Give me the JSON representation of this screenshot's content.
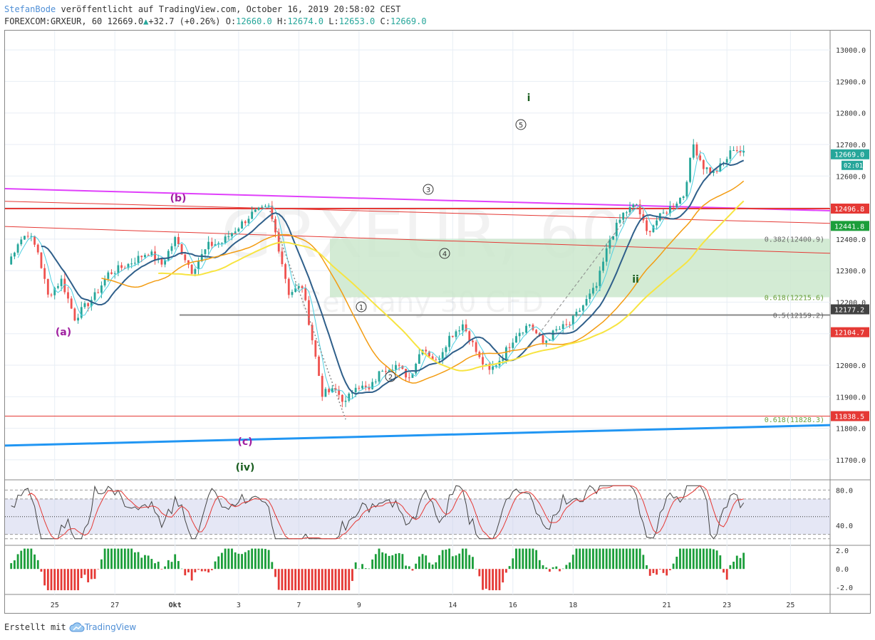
{
  "header": {
    "author": "StefanBode",
    "published": "veröffentlicht auf TradingView.com, October 16, 2019 20:58:02 CEST",
    "symbol": "FOREXCOM:GRXEUR, 60",
    "last": "12669.0",
    "change": "+32.7 (+0.26%)",
    "o_label": "O:",
    "o_value": "12660.0",
    "h_label": "H:",
    "h_value": "12674.0",
    "l_label": "L:",
    "l_value": "12653.0",
    "c_label": "C:",
    "c_value": "12669.0"
  },
  "footer": {
    "text": "Erstellt mit",
    "brand": "TradingView"
  },
  "watermark": {
    "symbol": "GRXEUR, 60",
    "name": "Germany 30 CFD"
  },
  "colors": {
    "bull": "#26a69a",
    "bear": "#ef5350",
    "magenta": "#e040fb",
    "red": "#e53935",
    "blue": "#2196f3",
    "navy": "#2f5f8a",
    "cyan": "#4dd0e1",
    "orange": "#f39c12",
    "yellow": "#f7e441",
    "zone": "#c8e6c9",
    "grid": "#e8eef5"
  },
  "chart_data": [
    {
      "type": "candlestick",
      "title": "FOREXCOM:GRXEUR, 60",
      "y_range": [
        11650,
        13050
      ],
      "y_ticks": [
        "13000.0",
        "12900.0",
        "12800.0",
        "12700.0",
        "12600.0",
        "12500.0",
        "12400.0",
        "12300.0",
        "12200.0",
        "12100.0",
        "12000.0",
        "11900.0",
        "11800.0",
        "11700.0"
      ],
      "x_ticks": [
        "25",
        "27",
        "Okt",
        "3",
        "7",
        "9",
        "14",
        "16",
        "18",
        "21",
        "23",
        "25"
      ],
      "path": [
        [
          0,
          12320
        ],
        [
          3,
          12390
        ],
        [
          6,
          12420
        ],
        [
          9,
          12360
        ],
        [
          12,
          12220
        ],
        [
          16,
          12270
        ],
        [
          20,
          12150
        ],
        [
          26,
          12220
        ],
        [
          30,
          12290
        ],
        [
          36,
          12320
        ],
        [
          42,
          12360
        ],
        [
          46,
          12320
        ],
        [
          50,
          12400
        ],
        [
          55,
          12300
        ],
        [
          60,
          12380
        ],
        [
          64,
          12390
        ],
        [
          68,
          12430
        ],
        [
          73,
          12480
        ],
        [
          78,
          12500
        ],
        [
          80,
          12420
        ],
        [
          84,
          12230
        ],
        [
          88,
          12250
        ],
        [
          90,
          12140
        ],
        [
          94,
          11910
        ],
        [
          98,
          11920
        ],
        [
          101,
          11880
        ],
        [
          104,
          11940
        ],
        [
          108,
          11920
        ],
        [
          112,
          11990
        ],
        [
          116,
          12000
        ],
        [
          120,
          11960
        ],
        [
          124,
          12060
        ],
        [
          128,
          12010
        ],
        [
          132,
          12090
        ],
        [
          136,
          12130
        ],
        [
          138,
          12090
        ],
        [
          141,
          12020
        ],
        [
          144,
          11980
        ],
        [
          148,
          12030
        ],
        [
          152,
          12100
        ],
        [
          156,
          12130
        ],
        [
          160,
          12070
        ],
        [
          164,
          12110
        ],
        [
          168,
          12130
        ],
        [
          172,
          12190
        ],
        [
          176,
          12250
        ],
        [
          180,
          12400
        ],
        [
          184,
          12480
        ],
        [
          188,
          12510
        ],
        [
          191,
          12420
        ],
        [
          194,
          12460
        ],
        [
          198,
          12500
        ],
        [
          202,
          12540
        ],
        [
          205,
          12700
        ],
        [
          208,
          12630
        ],
        [
          211,
          12610
        ],
        [
          214,
          12640
        ],
        [
          217,
          12690
        ],
        [
          220,
          12670
        ]
      ],
      "last_price": "12669.0",
      "countdown": "02:01"
    },
    {
      "type": "horizontal_levels",
      "levels": [
        {
          "label": "12496.8",
          "value": 12496.8,
          "color": "#e53935"
        },
        {
          "label": "12441.8",
          "value": 12441.8,
          "color": "#1b9e3a"
        },
        {
          "label": "12177.2",
          "value": 12177.2,
          "color": "#424242"
        },
        {
          "label": "12104.7",
          "value": 12104.7,
          "color": "#e53935"
        },
        {
          "label": "11838.5",
          "value": 11838.5,
          "color": "#e53935"
        }
      ]
    },
    {
      "type": "fibonacci",
      "levels": [
        {
          "label": "0.382(12400.9)",
          "value": 12400.9
        },
        {
          "label": "0.618(12215.6)",
          "value": 12215.6
        },
        {
          "label": "0.5(12159.2)",
          "value": 12159.2
        },
        {
          "label": "0.618(11828.3)",
          "value": 11828.3
        }
      ]
    },
    {
      "type": "annotations",
      "labels": [
        {
          "text": "(a)",
          "color": "#a020a0"
        },
        {
          "text": "(b)",
          "color": "#a020a0"
        },
        {
          "text": "(c)",
          "color": "#a020a0"
        },
        {
          "text": "(iv)",
          "color": "#1b5e20"
        },
        {
          "text": "i",
          "color": "#1b5e20"
        },
        {
          "text": "ii",
          "color": "#1b5e20"
        },
        {
          "text": "1",
          "circled": true
        },
        {
          "text": "2",
          "circled": true
        },
        {
          "text": "3",
          "circled": true
        },
        {
          "text": "4",
          "circled": true
        },
        {
          "text": "5",
          "circled": true
        }
      ]
    },
    {
      "type": "line",
      "name": "RSI",
      "y_range": [
        20,
        90
      ],
      "y_ticks": [
        "80.0",
        "40.0"
      ],
      "levels": [
        80,
        70,
        50,
        30,
        25
      ]
    },
    {
      "type": "histogram",
      "name": "MACD",
      "y_range": [
        -2.6,
        2.4
      ],
      "y_ticks": [
        "2.0",
        "0.0",
        "-2.0"
      ]
    }
  ]
}
